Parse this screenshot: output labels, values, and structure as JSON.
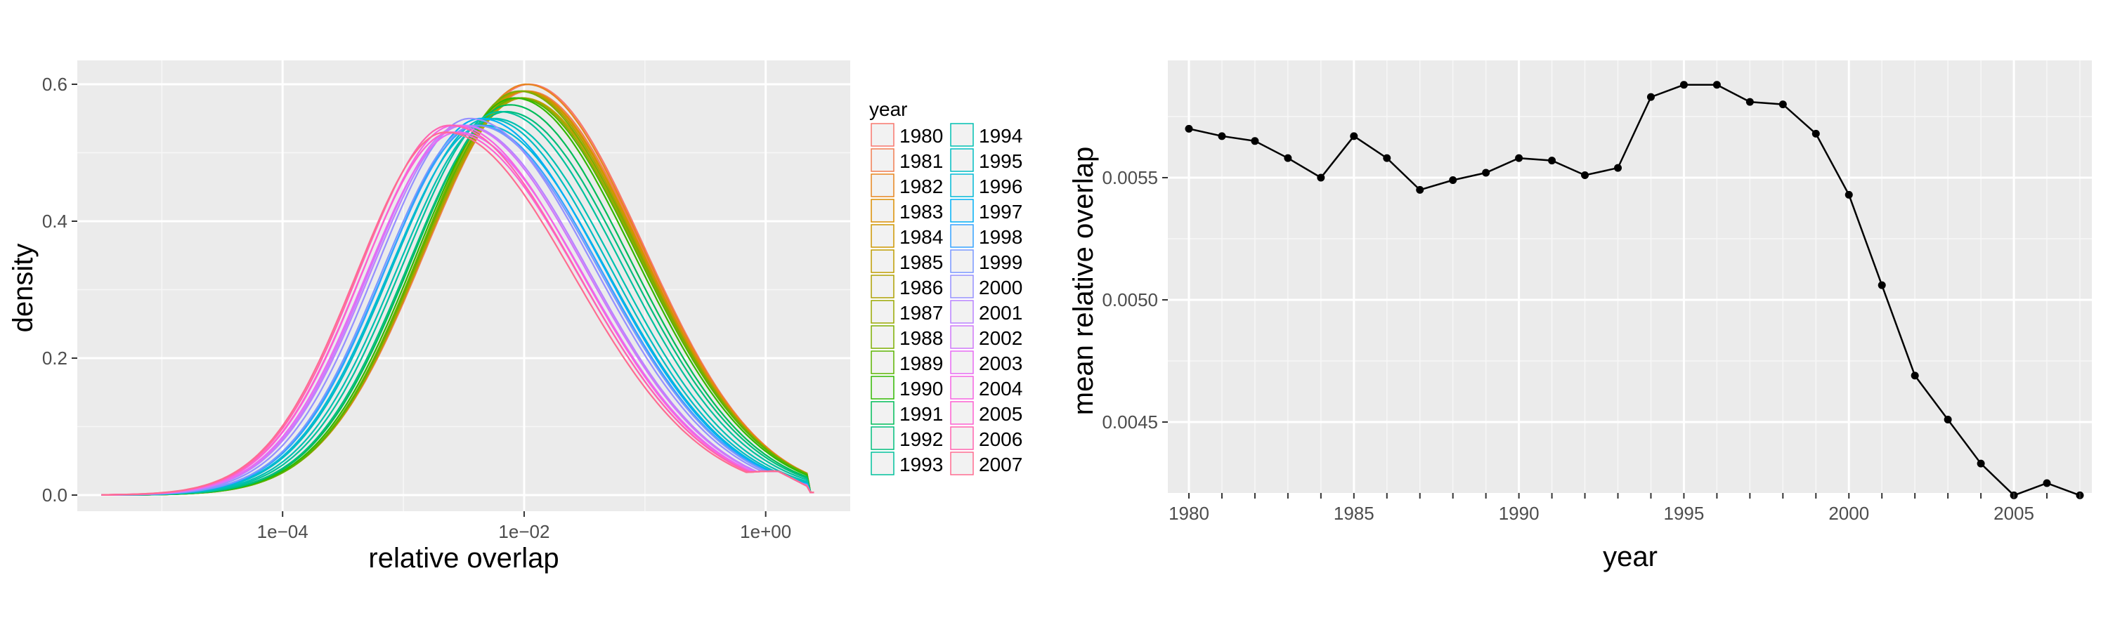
{
  "chart_data": [
    {
      "type": "line",
      "subtype": "density",
      "xlabel": "relative overlap",
      "ylabel": "density",
      "x_scale": "log10",
      "x_ticks": [
        "1e−04",
        "1e−02",
        "1e+00"
      ],
      "y_ticks": [
        "0.0",
        "0.2",
        "0.4",
        "0.6"
      ],
      "ylim": [
        0,
        0.6
      ],
      "grid": true,
      "legend": {
        "title": "year",
        "placement": "right",
        "entries": [
          "1980",
          "1981",
          "1982",
          "1983",
          "1984",
          "1985",
          "1986",
          "1987",
          "1988",
          "1989",
          "1990",
          "1991",
          "1992",
          "1993",
          "1994",
          "1995",
          "1996",
          "1997",
          "1998",
          "1999",
          "2000",
          "2001",
          "2002",
          "2003",
          "2004",
          "2005",
          "2006",
          "2007"
        ],
        "colors": [
          "#f8766d",
          "#f17d51",
          "#e7851e",
          "#db8e00",
          "#cd9600",
          "#be9c00",
          "#ad9f00",
          "#99a800",
          "#7cae00",
          "#5bb300",
          "#31b800",
          "#00bc59",
          "#00be7d",
          "#00c19c",
          "#00c0b2",
          "#00bdc2",
          "#00b9d6",
          "#00b0f6",
          "#35a2ff",
          "#7997ff",
          "#9590ff",
          "#b983ff",
          "#d078f9",
          "#e76bf3",
          "#f564e3",
          "#fd61d1",
          "#ff64b0",
          "#ff6c91"
        ]
      },
      "series_peaks": [
        0.6,
        0.59,
        0.6,
        0.59,
        0.59,
        0.58,
        0.59,
        0.58,
        0.59,
        0.58,
        0.58,
        0.57,
        0.56,
        0.56,
        0.55,
        0.55,
        0.54,
        0.55,
        0.54,
        0.54,
        0.55,
        0.54,
        0.54,
        0.53,
        0.54,
        0.53,
        0.54,
        0.53
      ],
      "series_modes": [
        -1.96,
        -1.97,
        -1.98,
        -1.99,
        -2.0,
        -2.01,
        -2.02,
        -2.03,
        -2.04,
        -2.05,
        -2.08,
        -2.12,
        -2.15,
        -2.2,
        -2.25,
        -2.3,
        -2.33,
        -2.36,
        -2.38,
        -2.4,
        -2.45,
        -2.5,
        -2.52,
        -2.55,
        -2.58,
        -2.6,
        -2.62,
        -2.65
      ]
    },
    {
      "type": "line",
      "xlabel": "year",
      "ylabel": "mean relative overlap",
      "x_ticks": [
        "1980",
        "1985",
        "1990",
        "1995",
        "2000",
        "2005"
      ],
      "y_ticks": [
        "0.0045",
        "0.0050",
        "0.0055"
      ],
      "xlim": [
        1979.4,
        2007.6
      ],
      "ylim": [
        0.00416,
        0.00592
      ],
      "grid": true,
      "x": [
        1980,
        1981,
        1982,
        1983,
        1984,
        1985,
        1986,
        1987,
        1988,
        1989,
        1990,
        1991,
        1992,
        1993,
        1994,
        1995,
        1996,
        1997,
        1998,
        1999,
        2000,
        2001,
        2002,
        2003,
        2004,
        2005,
        2006,
        2007
      ],
      "values": [
        0.0057,
        0.00567,
        0.00565,
        0.00558,
        0.0055,
        0.00567,
        0.00558,
        0.00545,
        0.00549,
        0.00552,
        0.00558,
        0.00557,
        0.00551,
        0.00554,
        0.00583,
        0.00588,
        0.00588,
        0.00581,
        0.0058,
        0.00568,
        0.00543,
        0.00506,
        0.00469,
        0.00451,
        0.00433,
        0.0042,
        0.00425,
        0.0042
      ]
    }
  ]
}
